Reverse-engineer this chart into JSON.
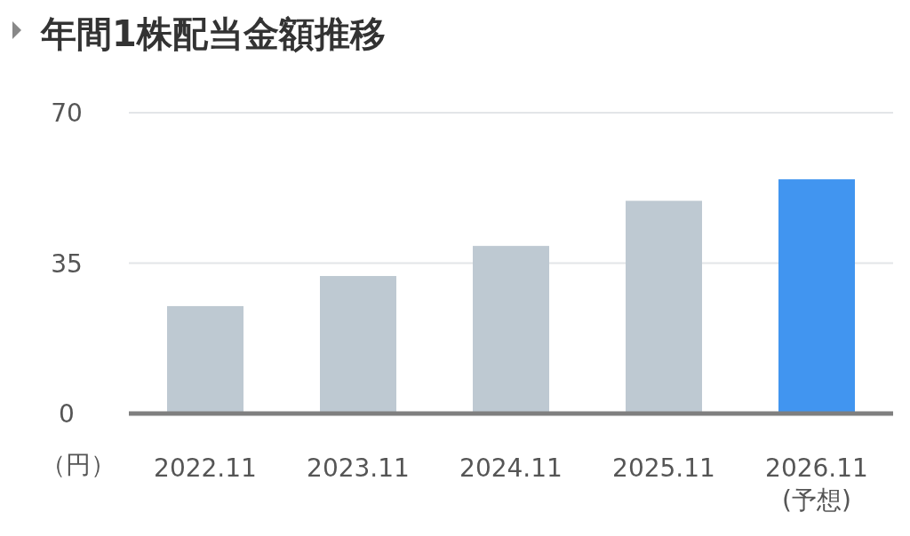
{
  "chart_data": {
    "type": "bar",
    "title": "年間1株配当金額推移",
    "ylabel": "（円）",
    "categories": [
      "2022.11",
      "2023.11",
      "2024.11",
      "2025.11",
      "2026.11\n(予想)"
    ],
    "values": [
      25,
      32,
      39,
      49.5,
      54.5
    ],
    "colors": [
      "#bec9d2",
      "#bec9d2",
      "#bec9d2",
      "#bec9d2",
      "#4195f0"
    ],
    "ylim": [
      0,
      70
    ],
    "yticks": [
      0,
      35,
      70
    ],
    "grid": "y"
  }
}
